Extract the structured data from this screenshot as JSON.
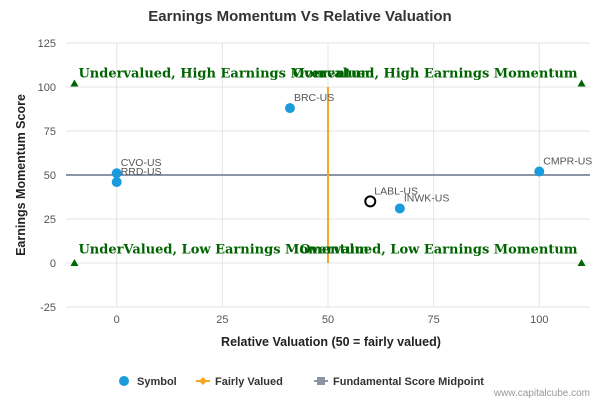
{
  "chart_data": {
    "type": "scatter",
    "title": "Earnings Momentum Vs Relative Valuation",
    "xlabel": "Relative Valuation (50 = fairly valued)",
    "ylabel": "Earnings Momentum Score",
    "xlim": [
      -12,
      112
    ],
    "ylim": [
      -25,
      125
    ],
    "x_ticks": [
      0,
      25,
      50,
      75,
      100
    ],
    "y_ticks": [
      -25,
      0,
      25,
      50,
      75,
      100,
      125
    ],
    "grid": true,
    "points": [
      {
        "label": "CVO-US",
        "x": 0,
        "y": 51,
        "marker": "filled"
      },
      {
        "label": "RRD-US",
        "x": 0,
        "y": 46,
        "marker": "filled"
      },
      {
        "label": "BRC-US",
        "x": 41,
        "y": 88,
        "marker": "filled"
      },
      {
        "label": "LABL-US",
        "x": 60,
        "y": 35,
        "marker": "hollow"
      },
      {
        "label": "INWK-US",
        "x": 67,
        "y": 31,
        "marker": "filled"
      },
      {
        "label": "CMPR-US",
        "x": 100,
        "y": 52,
        "marker": "filled"
      }
    ],
    "fairly_valued_x": 50,
    "fairly_valued_y_range": [
      0,
      100
    ],
    "midpoint_y": 50,
    "quadrant_markers": [
      {
        "x": -10,
        "y": 102
      },
      {
        "x": 110,
        "y": 102
      },
      {
        "x": -10,
        "y": 0
      },
      {
        "x": 110,
        "y": 0
      }
    ],
    "quadrant_labels": [
      {
        "text": "Undervalued, High Earnings Momentum",
        "x": -10,
        "y": 102,
        "anchor": "start"
      },
      {
        "text": "Overvalued, High Earnings Momentum",
        "x": 110,
        "y": 102,
        "anchor": "end"
      },
      {
        "text": "UnderValued, Low Earnings Momentum",
        "x": -10,
        "y": 2,
        "anchor": "start"
      },
      {
        "text": "Overvalued, Low Earnings Momentum",
        "x": 110,
        "y": 2,
        "anchor": "end"
      }
    ],
    "legend": {
      "position": "bottom",
      "items": [
        {
          "name": "Symbol",
          "color": "#1a9bdb",
          "marker": "circle"
        },
        {
          "name": "Fairly Valued",
          "color": "#f5a623",
          "marker": "diamond"
        },
        {
          "name": "Fundamental Score Midpoint",
          "color": "#8c94a8",
          "marker": "square"
        }
      ]
    },
    "colors": {
      "point": "#1a9bdb",
      "fairly_valued": "#f5a623",
      "midpoint": "#8c94a8",
      "quadrant": "#006400",
      "grid": "#e3e3e3"
    },
    "credit": "www.capitalcube.com"
  }
}
